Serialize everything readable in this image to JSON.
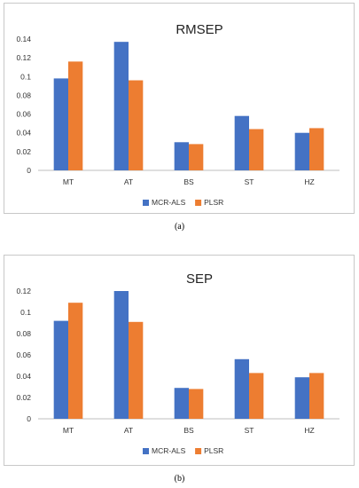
{
  "colors": {
    "mcr_als": "#4472C4",
    "plsr": "#ED7D31",
    "axis": "#bfbfbf",
    "text": "#333333"
  },
  "captions": {
    "a": "(a)",
    "b": "(b)"
  },
  "chart_data": [
    {
      "type": "bar",
      "title": "RMSEP",
      "categories": [
        "MT",
        "AT",
        "BS",
        "ST",
        "HZ"
      ],
      "series": [
        {
          "name": "MCR-ALS",
          "values": [
            0.098,
            0.137,
            0.03,
            0.058,
            0.04
          ]
        },
        {
          "name": "PLSR",
          "values": [
            0.116,
            0.096,
            0.028,
            0.044,
            0.045
          ]
        }
      ],
      "ylim": [
        0,
        0.14
      ],
      "yticks": [
        "0",
        "0.02",
        "0.04",
        "0.06",
        "0.08",
        "0.1",
        "0.12",
        "0.14"
      ],
      "grid": false,
      "legend": "bottom"
    },
    {
      "type": "bar",
      "title": "SEP",
      "categories": [
        "MT",
        "AT",
        "BS",
        "ST",
        "HZ"
      ],
      "series": [
        {
          "name": "MCR-ALS",
          "values": [
            0.092,
            0.12,
            0.029,
            0.056,
            0.039
          ]
        },
        {
          "name": "PLSR",
          "values": [
            0.109,
            0.091,
            0.028,
            0.043,
            0.043
          ]
        }
      ],
      "ylim": [
        0,
        0.12
      ],
      "yticks": [
        "0",
        "0.02",
        "0.04",
        "0.06",
        "0.08",
        "0.1",
        "0.12"
      ],
      "grid": false,
      "legend": "bottom"
    }
  ]
}
